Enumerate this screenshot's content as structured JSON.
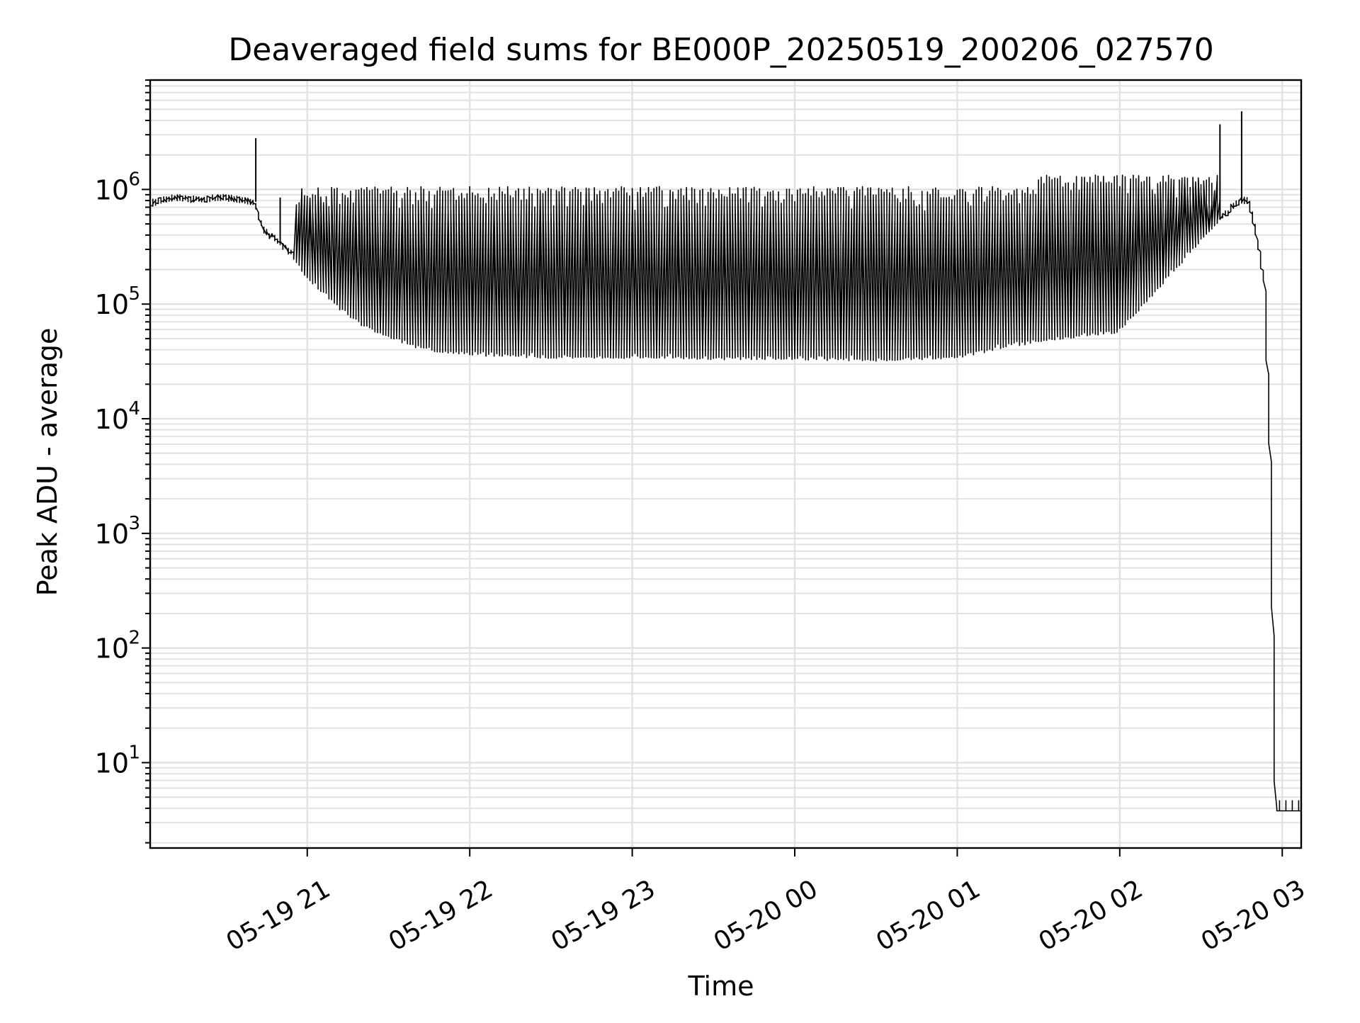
{
  "chart_data": {
    "type": "line",
    "title": "Deaveraged field sums for BE000P_20250519_200206_027570",
    "xlabel": "Time",
    "ylabel": "Peak ADU - average",
    "x_scale": "time",
    "y_scale": "log",
    "xlim": [
      "2025-05-19 20:02",
      "2025-05-20 03:07"
    ],
    "ylim": [
      1.8,
      9000000
    ],
    "grid": true,
    "line_color": "#000000",
    "grid_color": "#e2e2e2",
    "x_ticks": [
      {
        "value": "2025-05-19 21:00",
        "label": "05-19 21"
      },
      {
        "value": "2025-05-19 22:00",
        "label": "05-19 22"
      },
      {
        "value": "2025-05-19 23:00",
        "label": "05-19 23"
      },
      {
        "value": "2025-05-20 00:00",
        "label": "05-20 00"
      },
      {
        "value": "2025-05-20 01:00",
        "label": "05-20 01"
      },
      {
        "value": "2025-05-20 02:00",
        "label": "05-20 02"
      },
      {
        "value": "2025-05-20 03:00",
        "label": "05-20 03"
      }
    ],
    "y_ticks": [
      {
        "value": 10,
        "base": "10",
        "exp": "1"
      },
      {
        "value": 100,
        "base": "10",
        "exp": "2"
      },
      {
        "value": 1000,
        "base": "10",
        "exp": "3"
      },
      {
        "value": 10000,
        "base": "10",
        "exp": "4"
      },
      {
        "value": 100000,
        "base": "10",
        "exp": "5"
      },
      {
        "value": 1000000,
        "base": "10",
        "exp": "6"
      }
    ],
    "series": [
      {
        "x": [
          "2025-05-19 20:02",
          "2025-05-19 20:10",
          "2025-05-19 20:20",
          "2025-05-19 20:30",
          "2025-05-19 20:38",
          "2025-05-19 20:41",
          "2025-05-19 20:44",
          "2025-05-19 20:50",
          "2025-05-19 20:55",
          "2025-05-19 21:00",
          "2025-05-19 21:05",
          "2025-05-19 21:10",
          "2025-05-19 21:15",
          "2025-05-19 21:20",
          "2025-05-19 21:25",
          "2025-05-19 21:30",
          "2025-05-19 21:40",
          "2025-05-19 21:50",
          "2025-05-19 22:00",
          "2025-05-19 22:30",
          "2025-05-19 23:00",
          "2025-05-19 23:30",
          "2025-05-20 00:00",
          "2025-05-20 00:30",
          "2025-05-20 01:00",
          "2025-05-20 01:30",
          "2025-05-20 02:00",
          "2025-05-20 02:20",
          "2025-05-20 02:35",
          "2025-05-20 02:45",
          "2025-05-20 02:48",
          "2025-05-20 02:51",
          "2025-05-20 02:54",
          "2025-05-20 02:56",
          "2025-05-20 02:58",
          "2025-05-20 02:59",
          "2025-05-20 03:07"
        ],
        "y": [
          750000,
          850000,
          820000,
          850000,
          800000,
          780000,
          450000,
          350000,
          270000,
          180000,
          140000,
          110000,
          85000,
          70000,
          60000,
          55000,
          45000,
          40000,
          38000,
          36000,
          36000,
          35000,
          35000,
          34000,
          36000,
          50000,
          60000,
          200000,
          500000,
          800000,
          800000,
          400000,
          150000,
          5000,
          4,
          3.8,
          3.8
        ]
      }
    ],
    "annotations": {
      "peaks": [
        {
          "x": "2025-05-19 20:41",
          "y": 2800000
        },
        {
          "x": "2025-05-19 20:50",
          "y": 850000
        },
        {
          "x": "2025-05-20 02:37",
          "y": 3700000
        },
        {
          "x": "2025-05-20 02:45",
          "y": 4800000
        }
      ]
    }
  }
}
